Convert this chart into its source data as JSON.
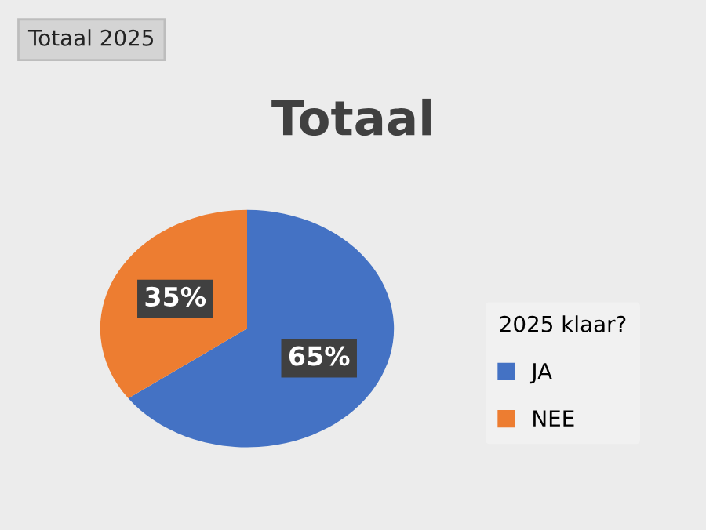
{
  "chart_data": {
    "type": "pie",
    "title": "Totaal",
    "legend_title": "2025 klaar?",
    "annotations": [
      "Totaal 2025"
    ],
    "categories": [
      "JA",
      "NEE"
    ],
    "values": [
      65,
      35
    ],
    "colors": [
      "#4472c4",
      "#ed7d31"
    ],
    "value_labels": [
      "65%",
      "35%"
    ],
    "legend": "right"
  }
}
